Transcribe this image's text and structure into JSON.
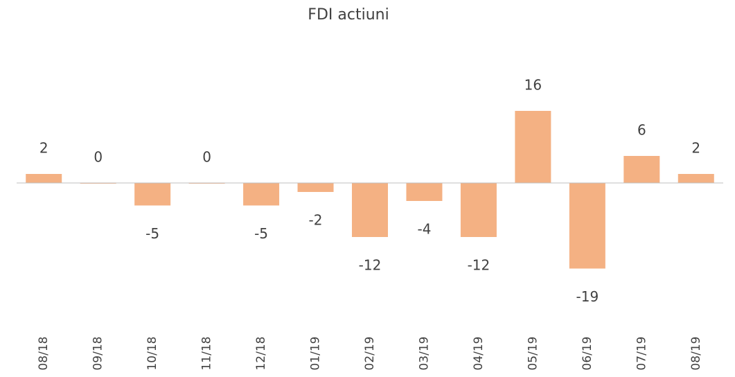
{
  "chart_data": {
    "type": "bar",
    "title": "FDI actiuni",
    "categories": [
      "08/18",
      "09/18",
      "10/18",
      "11/18",
      "12/18",
      "01/19",
      "02/19",
      "03/19",
      "04/19",
      "05/19",
      "06/19",
      "07/19",
      "08/19"
    ],
    "values": [
      2,
      0,
      -5,
      0,
      -5,
      -2,
      -12,
      -4,
      -12,
      16,
      -19,
      6,
      2
    ],
    "color": "#f4b183"
  }
}
